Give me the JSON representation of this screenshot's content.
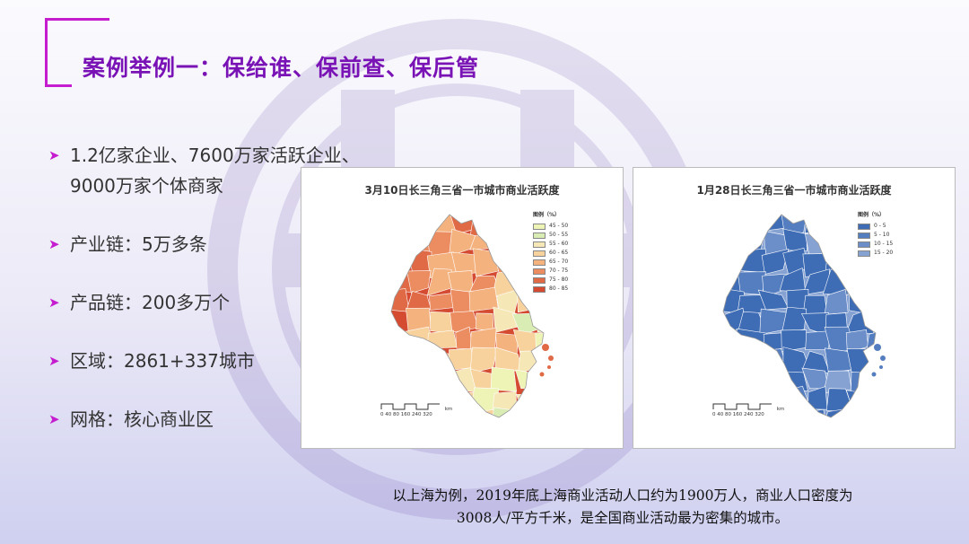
{
  "slide": {
    "title": "案例举例一：保给谁、保前查、保后管",
    "bullets": [
      {
        "line1": "1.2亿家企业、7600万家活跃企业、",
        "line2": "9000万家个体商家"
      },
      {
        "line1": "产业链：5万多条"
      },
      {
        "line1": "产品链：200多万个"
      },
      {
        "line1": "区域：2861+337城市"
      },
      {
        "line1": "网格：核心商业区"
      }
    ],
    "caption_line1": "以上海为例，2019年底上海商业活动人口约为1900万人，商业人口密度为",
    "caption_line2": "3008人/平方千米，是全国商业活动最为密集的城市。"
  },
  "maps": [
    {
      "title": "3月10日长三角三省一市城市商业活跃度",
      "legend_title": "图例（%）",
      "legend": [
        {
          "label": "45 - 50",
          "color": "#eef3b6"
        },
        {
          "label": "50 - 55",
          "color": "#d9ecb4"
        },
        {
          "label": "55 - 60",
          "color": "#f6e7b6"
        },
        {
          "label": "60 - 65",
          "color": "#f7d29d"
        },
        {
          "label": "65 - 70",
          "color": "#f4b27f"
        },
        {
          "label": "70 - 75",
          "color": "#ec8c61"
        },
        {
          "label": "75 - 80",
          "color": "#e06a46"
        },
        {
          "label": "80 - 85",
          "color": "#d44b32"
        }
      ],
      "scale_ticks": "0 40 80    160   240   320",
      "scale_unit": "km"
    },
    {
      "title": "1月28日长三角三省一市城市商业活跃度",
      "legend_title": "图例（%）",
      "legend": [
        {
          "label": "0 - 5",
          "color": "#3f6db5"
        },
        {
          "label": "5 - 10",
          "color": "#557ec0"
        },
        {
          "label": "10 - 15",
          "color": "#6c8fca"
        },
        {
          "label": "15 - 20",
          "color": "#86a2d2"
        }
      ],
      "scale_ticks": "0 40 80    160   240   320",
      "scale_unit": "km"
    }
  ]
}
